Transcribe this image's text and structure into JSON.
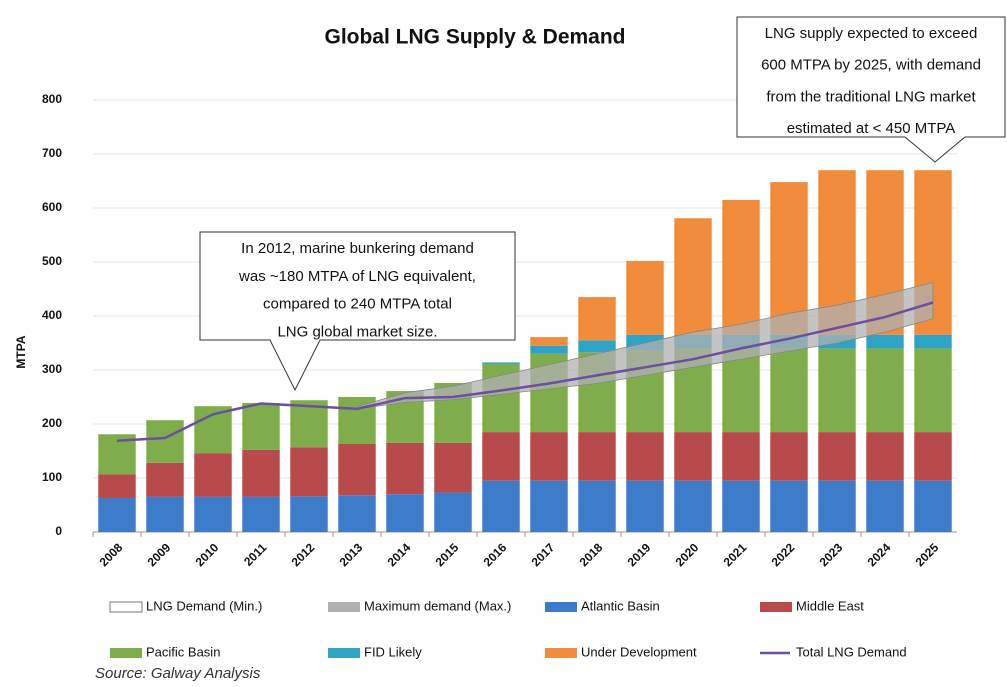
{
  "chart_data": {
    "type": "bar",
    "title": "Global LNG Supply & Demand",
    "y_label": "MTPA",
    "source": "Source: Galway Analysis",
    "categories": [
      "2008",
      "2009",
      "2010",
      "2011",
      "2012",
      "2013",
      "2014",
      "2015",
      "2016",
      "2017",
      "2018",
      "2019",
      "2020",
      "2021",
      "2022",
      "2023",
      "2024",
      "2025"
    ],
    "ylim": [
      0,
      800
    ],
    "yticks": [
      0,
      100,
      200,
      300,
      400,
      500,
      600,
      700,
      800
    ],
    "grid": true,
    "series": [
      {
        "name": "LNG Demand (Min.)",
        "type": "band_min",
        "color": "#ffffff",
        "values": [
          null,
          null,
          null,
          null,
          null,
          228,
          240,
          245,
          255,
          265,
          275,
          290,
          305,
          320,
          335,
          350,
          370,
          395
        ]
      },
      {
        "name": "Maximum demand (Max.)",
        "type": "band_max",
        "color": "#b0b0b0",
        "values": [
          null,
          null,
          null,
          null,
          null,
          232,
          258,
          270,
          290,
          310,
          330,
          350,
          370,
          385,
          405,
          420,
          440,
          462
        ]
      },
      {
        "name": "Atlantic Basin",
        "type": "bar",
        "color": "#3d7cc9",
        "values": [
          63,
          65,
          65,
          65,
          66,
          68,
          70,
          73,
          95,
          95,
          95,
          95,
          95,
          95,
          95,
          95,
          95,
          95
        ]
      },
      {
        "name": "Middle East",
        "type": "bar",
        "color": "#b94a4c",
        "values": [
          44,
          63,
          81,
          87,
          91,
          95,
          95,
          92,
          90,
          90,
          90,
          90,
          90,
          90,
          90,
          90,
          90,
          90
        ]
      },
      {
        "name": "Pacific Basin",
        "type": "bar",
        "color": "#7fad4c",
        "values": [
          74,
          79,
          87,
          87,
          87,
          87,
          96,
          111,
          126,
          145,
          148,
          152,
          155,
          155,
          155,
          155,
          155,
          155
        ]
      },
      {
        "name": "FID Likely",
        "type": "bar",
        "color": "#2ea3c4",
        "values": [
          0,
          0,
          0,
          0,
          0,
          0,
          0,
          0,
          3,
          15,
          22,
          28,
          25,
          25,
          25,
          25,
          25,
          25
        ]
      },
      {
        "name": "Under Development",
        "type": "bar",
        "color": "#f08c3c",
        "values": [
          0,
          0,
          0,
          0,
          0,
          0,
          0,
          0,
          0,
          16,
          80,
          137,
          216,
          250,
          283,
          305,
          305,
          305
        ]
      },
      {
        "name": "Total LNG Demand",
        "type": "line",
        "color": "#6b4fa0",
        "values": [
          169,
          174,
          218,
          238,
          233,
          228,
          248,
          250,
          262,
          275,
          290,
          305,
          320,
          340,
          358,
          378,
          398,
          425
        ]
      }
    ],
    "annotations": [
      [
        "In 2012, marine bunkering demand",
        "was ~180 MTPA of LNG equivalent,",
        "compared to 240 MTPA total",
        "LNG global market size."
      ],
      [
        "LNG supply expected to exceed",
        "600 MTPA by 2025, with demand",
        "from the traditional LNG market",
        "estimated at < 450 MTPA"
      ]
    ]
  }
}
